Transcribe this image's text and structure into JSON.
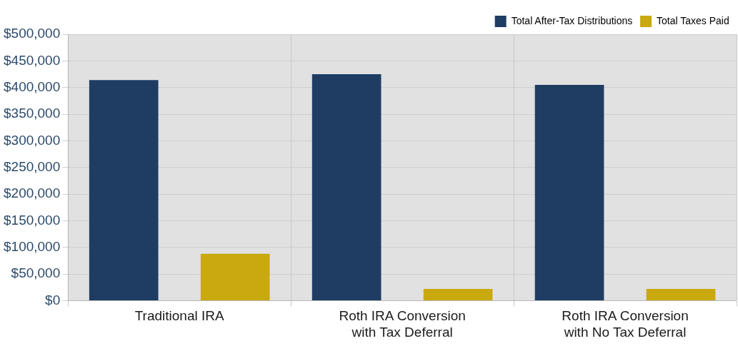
{
  "chart_data": {
    "type": "bar",
    "categories": [
      "Traditional IRA",
      "Roth IRA Conversion\nwith Tax Deferral",
      "Roth IRA Conversion\nwith No Tax Deferral"
    ],
    "series": [
      {
        "name": "Total After-Tax Distributions",
        "color": "#1f3d63",
        "values": [
          414000,
          425000,
          405000
        ]
      },
      {
        "name": "Total Taxes Paid",
        "color": "#c9a90f",
        "values": [
          88000,
          22000,
          22000
        ]
      }
    ],
    "ylim": [
      0,
      500000
    ],
    "yticks": [
      {
        "value": 0,
        "label": "$0"
      },
      {
        "value": 50000,
        "label": "$50,000"
      },
      {
        "value": 100000,
        "label": "$100,000"
      },
      {
        "value": 150000,
        "label": "$150,000"
      },
      {
        "value": 200000,
        "label": "$200,000"
      },
      {
        "value": 250000,
        "label": "$250,000"
      },
      {
        "value": 300000,
        "label": "$300,000"
      },
      {
        "value": 350000,
        "label": "$350,000"
      },
      {
        "value": 400000,
        "label": "$400,000"
      },
      {
        "value": 450000,
        "label": "$450,000"
      },
      {
        "value": 500000,
        "label": "$500,000"
      }
    ],
    "grid": true,
    "legend": "top right"
  }
}
